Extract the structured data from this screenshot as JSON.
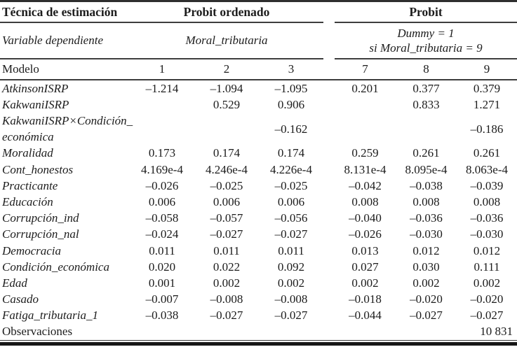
{
  "table": {
    "header": {
      "technique_label": "Técnica de estimación",
      "group1_label": "Probit ordenado",
      "group2_label": "Probit",
      "depvar_label": "Variable dependiente",
      "depvar_group1": "Moral_tributaria",
      "depvar_group2": "Dummy = 1\nsi Moral_tributaria = 9",
      "model_label": "Modelo",
      "model_numbers": [
        "1",
        "2",
        "3",
        "7",
        "8",
        "9"
      ]
    },
    "rows": [
      {
        "label": "AtkinsonISRP",
        "values": [
          "–1.214",
          "–1.094",
          "–1.095",
          "0.201",
          "0.377",
          "0.379"
        ]
      },
      {
        "label": "KakwaniISRP",
        "values": [
          "",
          "0.529",
          "0.906",
          "",
          "0.833",
          "1.271"
        ]
      },
      {
        "label": "KakwaniISRP×Condición_\neconómica",
        "values": [
          "",
          "",
          "–0.162",
          "",
          "",
          "–0.186"
        ]
      },
      {
        "label": "Moralidad",
        "values": [
          "0.173",
          "0.174",
          "0.174",
          "0.259",
          "0.261",
          "0.261"
        ]
      },
      {
        "label": "Cont_honestos",
        "values": [
          "4.169e-4",
          "4.246e-4",
          "4.226e-4",
          "8.131e-4",
          "8.095e-4",
          "8.063e-4"
        ]
      },
      {
        "label": "Practicante",
        "values": [
          "–0.026",
          "–0.025",
          "–0.025",
          "–0.042",
          "–0.038",
          "–0.039"
        ]
      },
      {
        "label": "Educación",
        "values": [
          "0.006",
          "0.006",
          "0.006",
          "0.008",
          "0.008",
          "0.008"
        ]
      },
      {
        "label": "Corrupción_ind",
        "values": [
          "–0.058",
          "–0.057",
          "–0.056",
          "–0.040",
          "–0.036",
          "–0.036"
        ]
      },
      {
        "label": "Corrupción_nal",
        "values": [
          "–0.024",
          "–0.027",
          "–0.027",
          "–0.026",
          "–0.030",
          "–0.030"
        ]
      },
      {
        "label": "Democracia",
        "values": [
          "0.011",
          "0.011",
          "0.011",
          "0.013",
          "0.012",
          "0.012"
        ]
      },
      {
        "label": "Condición_económica",
        "values": [
          "0.020",
          "0.022",
          "0.092",
          "0.027",
          "0.030",
          "0.111"
        ]
      },
      {
        "label": "Edad",
        "values": [
          "0.001",
          "0.002",
          "0.002",
          "0.002",
          "0.002",
          "0.002"
        ]
      },
      {
        "label": "Casado",
        "values": [
          "–0.007",
          "–0.008",
          "–0.008",
          "–0.018",
          "–0.020",
          "–0.020"
        ]
      },
      {
        "label": "Fatiga_tributaria_1",
        "values": [
          "–0.038",
          "–0.027",
          "–0.027",
          "–0.044",
          "–0.027",
          "–0.027"
        ]
      }
    ],
    "footer": {
      "label": "Observaciones",
      "value": "10 831"
    }
  }
}
